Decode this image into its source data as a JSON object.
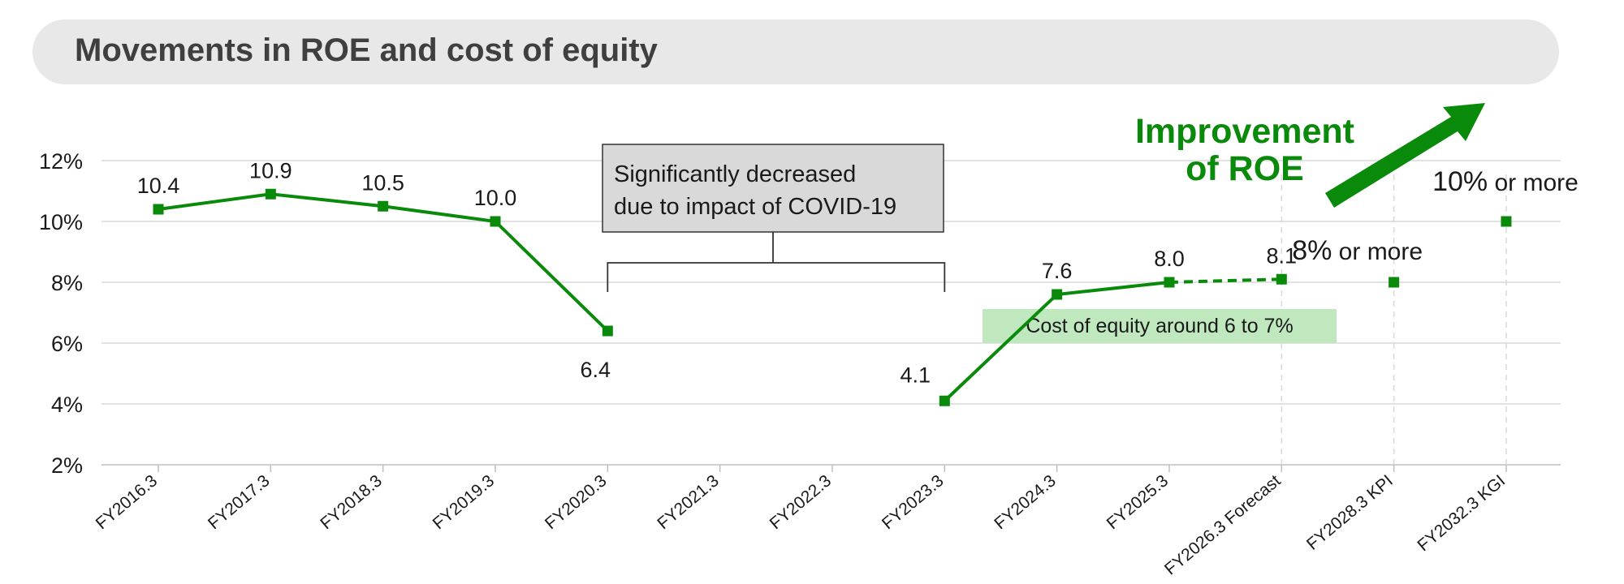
{
  "header": {
    "title": "Movements in ROE and cost of equity"
  },
  "colors": {
    "series": "#0a8a0a",
    "grid": "#d9d9d9",
    "callout_bg": "#d9d9d9",
    "band_bg": "#bfe8bf",
    "text": "#1a1a1a"
  },
  "chart_data": {
    "type": "line",
    "title": "Movements in ROE and cost of equity",
    "categories": [
      "FY2016.3",
      "FY2017.3",
      "FY2018.3",
      "FY2019.3",
      "FY2020.3",
      "FY2021.3",
      "FY2022.3",
      "FY2023.3",
      "FY2024.3",
      "FY2025.3",
      "FY2026.3 Forecast",
      "FY2028.3 KPI",
      "FY2032.3 KGI"
    ],
    "yticks": [
      "2%",
      "4%",
      "6%",
      "8%",
      "10%",
      "12%"
    ],
    "ylim": [
      2,
      12
    ],
    "grid": true,
    "series": [
      {
        "values": [
          10.4,
          10.9,
          10.5,
          10.0,
          6.4,
          null,
          null,
          4.1,
          7.6,
          8.0,
          8.1,
          8.0,
          10.0
        ],
        "labels": [
          "10.4",
          "10.9",
          "10.5",
          "10.0",
          "6.4",
          "",
          "",
          "4.1",
          "7.6",
          "8.0",
          "8.1",
          "",
          ""
        ],
        "segments": [
          {
            "from": 0,
            "to": 4,
            "style": "solid"
          },
          {
            "from": 7,
            "to": 9,
            "style": "solid"
          },
          {
            "from": 9,
            "to": 10,
            "style": "dashed"
          }
        ]
      }
    ],
    "targets": [
      {
        "index": 11,
        "pct": "8%",
        "suffix": " or more"
      },
      {
        "index": 12,
        "pct": "10%",
        "suffix": " or more"
      }
    ],
    "annotations": {
      "covid_callout": {
        "line1": "Significantly decreased",
        "line2": "due to impact of COVID-19",
        "from_index": 4,
        "to_index": 7
      },
      "cost_of_equity": {
        "text": "Cost of equity around 6 to 7%"
      },
      "improvement": {
        "line1": "Improvement",
        "line2": "of ROE"
      }
    }
  }
}
